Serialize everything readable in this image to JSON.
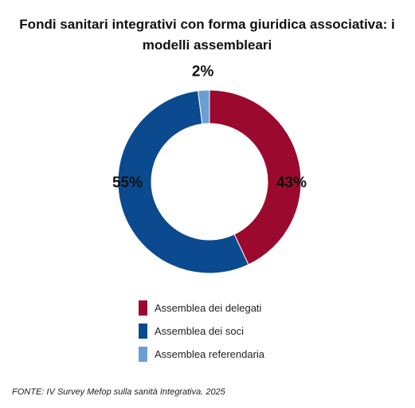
{
  "chart_data": {
    "type": "pie",
    "variant": "donut",
    "title": "Fondi sanitari integrativi con forma giuridica associativa: i modelli assembleari",
    "slices": [
      {
        "label": "Assemblea dei delegati",
        "value": 43,
        "display": "43%",
        "color": "#9b0a2e"
      },
      {
        "label": "Assemblea dei soci",
        "value": 55,
        "display": "55%",
        "color": "#0b4a8f"
      },
      {
        "label": "Assemblea referendaria",
        "value": 2,
        "display": "2%",
        "color": "#6a9fd4"
      }
    ],
    "legend_position": "bottom"
  },
  "source": "FONTE: IV Survey Mefop sulla sanità Integrativa. 2025"
}
